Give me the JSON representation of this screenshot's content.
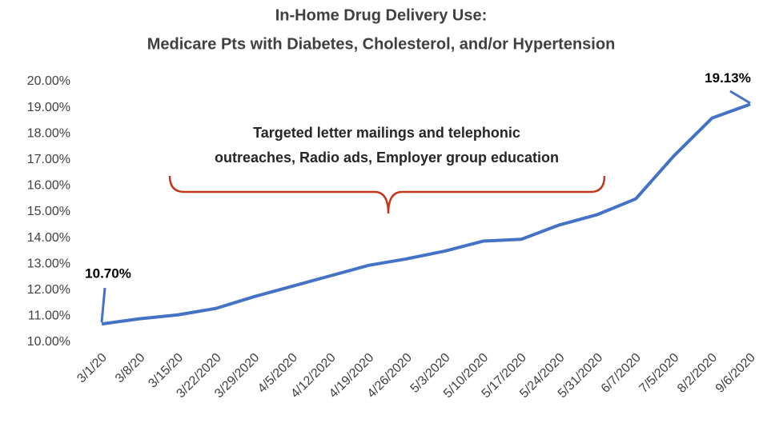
{
  "chart_data": {
    "type": "line",
    "title": [
      "In-Home Drug Delivery Use:",
      "Medicare Pts with Diabetes, Cholesterol, and/or Hypertension"
    ],
    "annotation": [
      "Targeted letter mailings and telephonic",
      "outreaches, Radio ads, Employer group education"
    ],
    "categories": [
      "3/1/20",
      "3/8/20",
      "3/15/20",
      "3/22/2020",
      "3/29/2020",
      "4/5/2020",
      "4/12/2020",
      "4/19/2020",
      "4/26/2020",
      "5/3/2020",
      "5/10/2020",
      "5/17/2020",
      "5/24/2020",
      "5/31/2020",
      "6/7/2020",
      "7/5/2020",
      "8/2/2020",
      "9/6/2020"
    ],
    "series": [
      {
        "name": "In-Home Drug Delivery Use",
        "color": "#4472c4",
        "values": [
          10.7,
          10.9,
          11.05,
          11.3,
          11.75,
          12.15,
          12.55,
          12.95,
          13.2,
          13.5,
          13.88,
          13.95,
          14.5,
          14.9,
          15.5,
          17.15,
          18.6,
          19.13
        ],
        "value_labels": [
          "10.70%",
          null,
          null,
          null,
          null,
          null,
          null,
          null,
          null,
          null,
          null,
          null,
          null,
          null,
          null,
          null,
          null,
          "19.13%"
        ]
      }
    ],
    "ylim": [
      10,
      20
    ],
    "yticks": [
      {
        "value": 10,
        "label": "10.00%"
      },
      {
        "value": 11,
        "label": "11.00%"
      },
      {
        "value": 12,
        "label": "12.00%"
      },
      {
        "value": 13,
        "label": "13.00%"
      },
      {
        "value": 14,
        "label": "14.00%"
      },
      {
        "value": 15,
        "label": "15.00%"
      },
      {
        "value": 16,
        "label": "16.00%"
      },
      {
        "value": 17,
        "label": "17.00%"
      },
      {
        "value": 18,
        "label": "18.00%"
      },
      {
        "value": 19,
        "label": "19.00%"
      },
      {
        "value": 20,
        "label": "20.00%"
      }
    ],
    "grid": false
  }
}
